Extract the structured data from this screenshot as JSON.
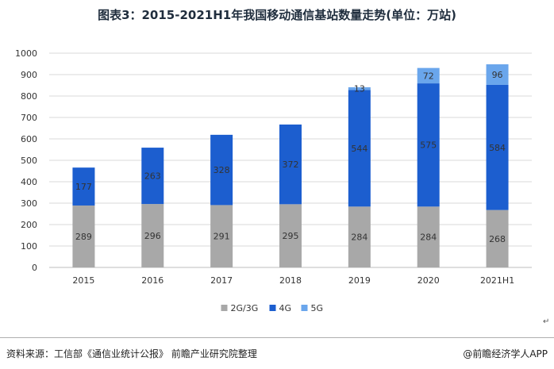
{
  "title": "图表3：2015-2021H1年我国移动通信基站数量走势(单位：万站)",
  "chart_data": {
    "type": "bar",
    "stacked": true,
    "categories": [
      "2015",
      "2016",
      "2017",
      "2018",
      "2019",
      "2020",
      "2021H1"
    ],
    "series": [
      {
        "name": "2G/3G",
        "color": "#a8a8a8",
        "values": [
          289,
          296,
          291,
          295,
          284,
          284,
          268
        ]
      },
      {
        "name": "4G",
        "color": "#1c5ecf",
        "values": [
          177,
          263,
          328,
          372,
          544,
          575,
          584
        ]
      },
      {
        "name": "5G",
        "color": "#6aa6ec",
        "values": [
          0,
          0,
          0,
          0,
          13,
          72,
          96
        ]
      }
    ],
    "ylim": [
      0,
      1000
    ],
    "yticks": [
      0,
      100,
      200,
      300,
      400,
      500,
      600,
      700,
      800,
      900,
      1000
    ],
    "grid": true,
    "legend_position": "bottom"
  },
  "footer": {
    "source": "资料来源：工信部《通信业统计公报》 前瞻产业研究院整理",
    "brand": "@前瞻经济学人APP"
  },
  "mark": "↵"
}
